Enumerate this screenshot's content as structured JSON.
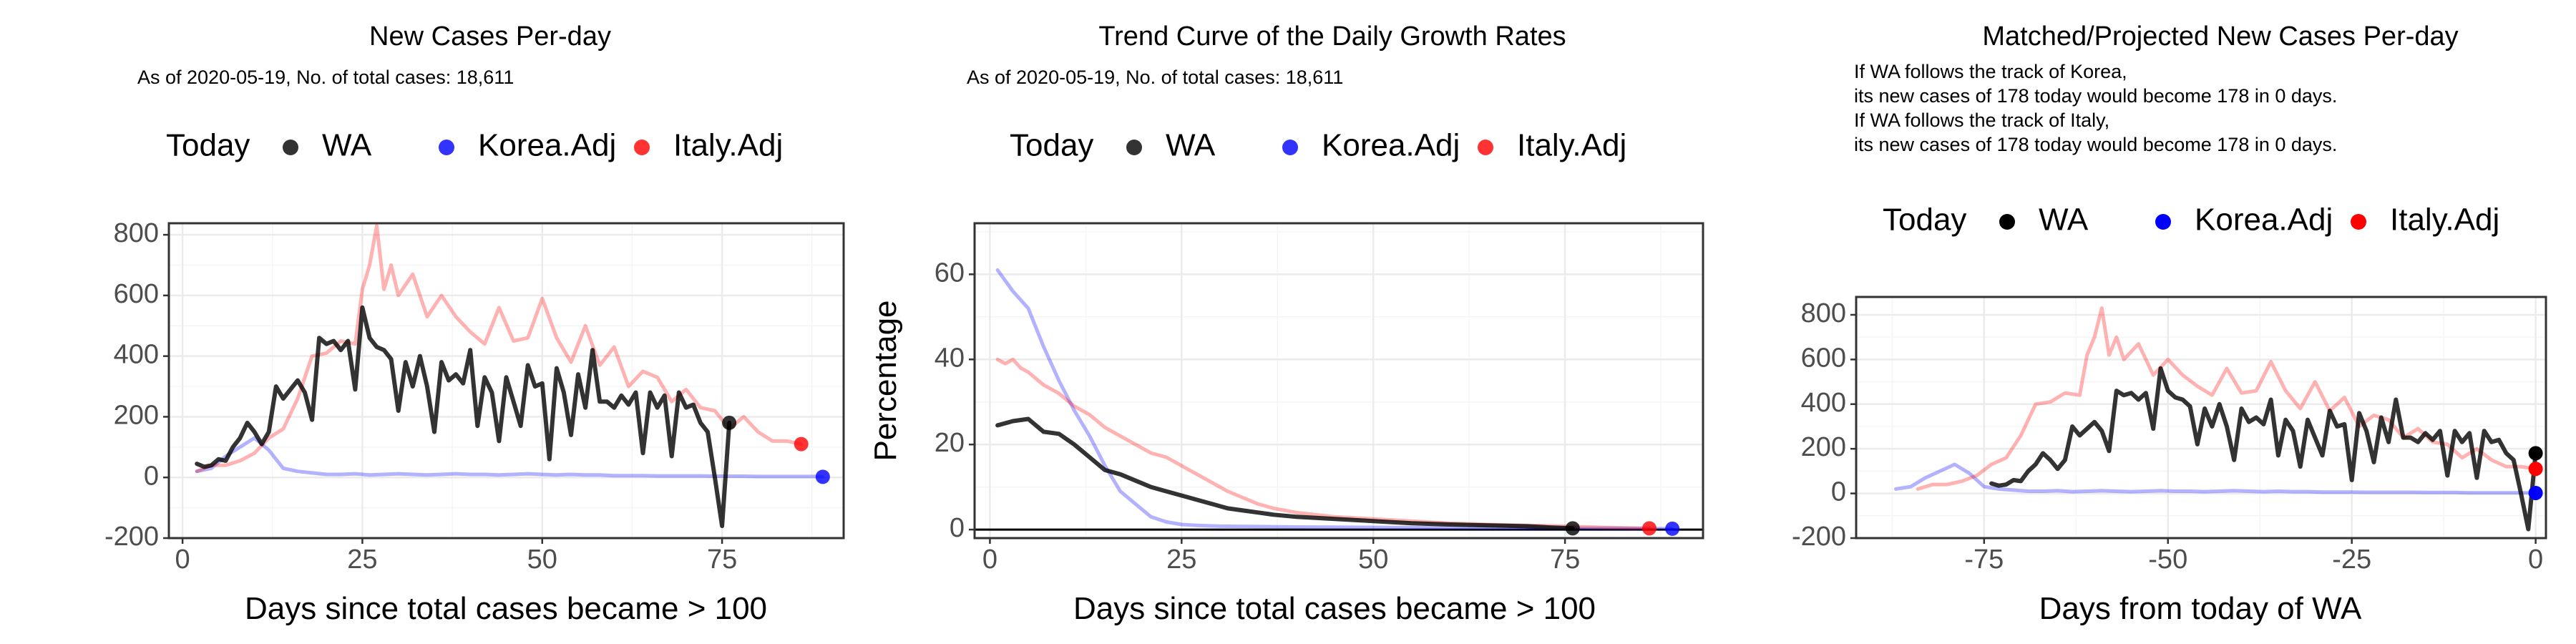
{
  "colors": {
    "wa": "#000000",
    "korea": "#0000FF",
    "italy": "#FF0000",
    "grid_major": "#EBEBEB",
    "grid_minor": "#F5F5F5",
    "axis_text": "#4D4D4D"
  },
  "legend": {
    "title": "Today",
    "items": [
      "WA",
      "Korea.Adj",
      "Italy.Adj"
    ]
  },
  "chart_data": [
    {
      "type": "line",
      "title": "New Cases Per-day",
      "subtitle": "As of 2020-05-19, No. of total cases: 18,611",
      "xlabel": "Days since total cases became > 100",
      "ylabel": "",
      "xlim": [
        -1.9,
        91.9
      ],
      "ylim": [
        -200,
        838
      ],
      "x_ticks": [
        0,
        25,
        50,
        75
      ],
      "x_tick_labels": [
        "0",
        "25",
        "50",
        "75"
      ],
      "y_ticks": [
        -200,
        0,
        200,
        400,
        600,
        800
      ],
      "y_tick_labels": [
        "-200",
        "0",
        "200",
        "400",
        "600",
        "800"
      ],
      "grid": true,
      "legend_position": "top",
      "series": [
        {
          "name": "WA",
          "x": [
            2,
            3,
            4,
            5,
            6,
            7,
            8,
            9,
            10,
            11,
            12,
            13,
            14,
            15,
            16,
            17,
            18,
            19,
            20,
            21,
            22,
            23,
            24,
            25,
            26,
            27,
            28,
            29,
            30,
            31,
            32,
            33,
            34,
            35,
            36,
            37,
            38,
            39,
            40,
            41,
            42,
            43,
            44,
            45,
            46,
            47,
            48,
            49,
            50,
            51,
            52,
            53,
            54,
            55,
            56,
            57,
            58,
            59,
            60,
            61,
            62,
            63,
            64,
            65,
            66,
            67,
            68,
            69,
            70,
            71,
            72,
            73,
            74,
            75,
            76
          ],
          "values": [
            45,
            35,
            40,
            60,
            55,
            100,
            130,
            180,
            150,
            110,
            150,
            300,
            260,
            290,
            320,
            280,
            190,
            460,
            440,
            450,
            420,
            450,
            290,
            560,
            460,
            430,
            420,
            390,
            220,
            380,
            300,
            400,
            300,
            150,
            380,
            320,
            340,
            310,
            420,
            170,
            330,
            280,
            120,
            330,
            250,
            170,
            370,
            300,
            310,
            60,
            360,
            280,
            140,
            340,
            230,
            420,
            250,
            250,
            230,
            270,
            240,
            280,
            80,
            280,
            230,
            270,
            70,
            280,
            230,
            240,
            180,
            150,
            0,
            -160,
            180
          ],
          "color": "#000000",
          "today": {
            "x": 76,
            "y": 180
          }
        },
        {
          "name": "Korea.Adj",
          "x": [
            2,
            4,
            6,
            8,
            10,
            12,
            14,
            16,
            18,
            20,
            22,
            24,
            26,
            28,
            30,
            32,
            34,
            36,
            38,
            40,
            42,
            44,
            46,
            48,
            50,
            52,
            54,
            56,
            58,
            60,
            62,
            64,
            66,
            68,
            70,
            72,
            74,
            76,
            78,
            80,
            82,
            84,
            86,
            88,
            89
          ],
          "values": [
            20,
            30,
            70,
            100,
            130,
            90,
            30,
            20,
            15,
            10,
            10,
            12,
            8,
            10,
            12,
            10,
            8,
            10,
            12,
            10,
            10,
            8,
            10,
            12,
            10,
            8,
            10,
            8,
            8,
            6,
            6,
            6,
            5,
            5,
            5,
            5,
            4,
            4,
            4,
            3,
            3,
            3,
            3,
            3,
            2
          ],
          "color": "#0000FF",
          "today": {
            "x": 89,
            "y": 2
          }
        },
        {
          "name": "Italy.Adj",
          "x": [
            2,
            4,
            6,
            8,
            10,
            12,
            14,
            16,
            18,
            20,
            22,
            24,
            25,
            26,
            27,
            28,
            29,
            30,
            32,
            34,
            36,
            38,
            40,
            42,
            44,
            46,
            48,
            50,
            52,
            54,
            56,
            58,
            60,
            62,
            64,
            66,
            68,
            70,
            72,
            74,
            76,
            78,
            80,
            82,
            84,
            86
          ],
          "values": [
            20,
            40,
            40,
            55,
            80,
            130,
            160,
            260,
            400,
            410,
            450,
            440,
            620,
            700,
            830,
            620,
            700,
            600,
            670,
            530,
            600,
            530,
            480,
            440,
            560,
            450,
            460,
            590,
            460,
            380,
            500,
            370,
            430,
            300,
            350,
            330,
            250,
            290,
            230,
            220,
            160,
            200,
            150,
            120,
            120,
            110
          ],
          "color": "#FF0000",
          "today": {
            "x": 86,
            "y": 110
          }
        }
      ]
    },
    {
      "type": "line",
      "title": "Trend Curve of the Daily Growth Rates",
      "subtitle": "As of 2020-05-19, No. of total cases: 18,611",
      "xlabel": "Days since total cases became > 100",
      "ylabel": "Percentage",
      "xlim": [
        -2.0,
        93.0
      ],
      "ylim": [
        -2,
        72
      ],
      "x_ticks": [
        0,
        25,
        50,
        75
      ],
      "x_tick_labels": [
        "0",
        "25",
        "50",
        "75"
      ],
      "y_ticks": [
        0,
        20,
        40,
        60
      ],
      "y_tick_labels": [
        "0",
        "20",
        "40",
        "60"
      ],
      "reference_line_y": 0,
      "grid": true,
      "legend_position": "top",
      "series": [
        {
          "name": "WA",
          "x": [
            1,
            3,
            5,
            7,
            9,
            11,
            13,
            15,
            17,
            19,
            21,
            23,
            25,
            27,
            29,
            31,
            33,
            35,
            37,
            40,
            45,
            50,
            55,
            60,
            65,
            70,
            73,
            76
          ],
          "values": [
            24.5,
            25.5,
            26,
            23,
            22.5,
            20,
            17,
            14,
            13,
            11.5,
            10,
            9,
            8,
            7,
            6,
            5,
            4.5,
            4,
            3.5,
            3,
            2.5,
            2,
            1.5,
            1.2,
            1,
            0.8,
            0.5,
            0.3
          ],
          "color": "#000000",
          "today": {
            "x": 76,
            "y": 0.3
          }
        },
        {
          "name": "Korea.Adj",
          "x": [
            1,
            3,
            5,
            7,
            9,
            11,
            13,
            15,
            17,
            19,
            21,
            23,
            25,
            27,
            30,
            35,
            40,
            50,
            60,
            70,
            80,
            89
          ],
          "values": [
            61,
            56,
            52,
            43,
            35,
            28,
            22,
            15,
            9,
            6,
            3,
            1.8,
            1.2,
            1,
            0.8,
            0.7,
            0.6,
            0.5,
            0.4,
            0.3,
            0.3,
            0.2
          ],
          "color": "#0000FF",
          "today": {
            "x": 89,
            "y": 0.2
          }
        },
        {
          "name": "Italy.Adj",
          "x": [
            1,
            2,
            3,
            4,
            5,
            7,
            9,
            11,
            13,
            15,
            17,
            19,
            21,
            23,
            25,
            27,
            29,
            31,
            33,
            35,
            37,
            40,
            45,
            50,
            55,
            60,
            65,
            70,
            75,
            80,
            86
          ],
          "values": [
            40,
            39,
            40,
            38,
            37,
            34,
            32,
            29,
            27,
            24,
            22,
            20,
            18,
            17,
            15,
            13,
            11,
            9,
            7.5,
            6,
            5,
            4,
            3,
            2.5,
            2,
            1.5,
            1.2,
            1,
            0.8,
            0.5,
            0.3
          ],
          "color": "#FF0000",
          "today": {
            "x": 86,
            "y": 0.3
          }
        }
      ]
    },
    {
      "type": "line",
      "title": "Matched/Projected New Cases Per-day",
      "annotation_lines": [
        "If WA follows the track of Korea,",
        "its new cases of 178 today would become 178 in 0 days.",
        "If WA follows the track of Italy,",
        "its new cases of 178 today would become 178 in 0 days."
      ],
      "xlabel": "Days from today of WA",
      "ylabel": "",
      "xlim": [
        -92.4,
        1.4
      ],
      "ylim": [
        -200,
        880
      ],
      "x_ticks": [
        -75,
        -50,
        -25,
        0
      ],
      "x_tick_labels": [
        "-75",
        "-50",
        "-25",
        "0"
      ],
      "y_ticks": [
        -200,
        0,
        200,
        400,
        600,
        800
      ],
      "y_tick_labels": [
        "-200",
        "0",
        "200",
        "400",
        "600",
        "800"
      ],
      "grid": true,
      "legend_position": "top",
      "series": [
        {
          "name": "WA",
          "x": [
            -74,
            -73,
            -72,
            -71,
            -70,
            -69,
            -68,
            -67,
            -66,
            -65,
            -64,
            -63,
            -62,
            -61,
            -60,
            -59,
            -58,
            -57,
            -56,
            -55,
            -54,
            -53,
            -52,
            -51,
            -50,
            -49,
            -48,
            -47,
            -46,
            -45,
            -44,
            -43,
            -42,
            -41,
            -40,
            -39,
            -38,
            -37,
            -36,
            -35,
            -34,
            -33,
            -32,
            -31,
            -30,
            -29,
            -28,
            -27,
            -26,
            -25,
            -24,
            -23,
            -22,
            -21,
            -20,
            -19,
            -18,
            -17,
            -16,
            -15,
            -14,
            -13,
            -12,
            -11,
            -10,
            -9,
            -8,
            -7,
            -6,
            -5,
            -4,
            -3,
            -2,
            -1,
            0
          ],
          "values": [
            45,
            35,
            40,
            60,
            55,
            100,
            130,
            180,
            150,
            110,
            150,
            300,
            260,
            290,
            320,
            280,
            190,
            460,
            440,
            450,
            420,
            450,
            290,
            560,
            460,
            430,
            420,
            390,
            220,
            380,
            300,
            400,
            300,
            150,
            380,
            320,
            340,
            310,
            420,
            170,
            330,
            280,
            120,
            330,
            250,
            170,
            370,
            300,
            310,
            60,
            360,
            280,
            140,
            340,
            230,
            420,
            250,
            250,
            230,
            270,
            240,
            280,
            80,
            280,
            230,
            270,
            70,
            280,
            230,
            240,
            180,
            150,
            0,
            -160,
            180
          ],
          "color": "#000000",
          "today": {
            "x": 0,
            "y": 180
          }
        },
        {
          "name": "Korea.Adj",
          "x": [
            -87,
            -85,
            -83,
            -81,
            -79,
            -77,
            -75,
            -73,
            -71,
            -69,
            -67,
            -65,
            -63,
            -61,
            -59,
            -57,
            -55,
            -53,
            -51,
            -49,
            -47,
            -45,
            -43,
            -41,
            -39,
            -37,
            -35,
            -33,
            -31,
            -29,
            -27,
            -25,
            -23,
            -21,
            -19,
            -17,
            -15,
            -13,
            -11,
            -9,
            -7,
            -5,
            -3,
            -1,
            0
          ],
          "values": [
            20,
            30,
            70,
            100,
            130,
            90,
            30,
            20,
            15,
            10,
            10,
            12,
            8,
            10,
            12,
            10,
            8,
            10,
            12,
            10,
            10,
            8,
            10,
            12,
            10,
            8,
            10,
            8,
            8,
            6,
            6,
            6,
            5,
            5,
            5,
            5,
            4,
            4,
            4,
            3,
            3,
            3,
            3,
            3,
            2
          ],
          "color": "#0000FF",
          "today": {
            "x": 0,
            "y": 2
          }
        },
        {
          "name": "Italy.Adj",
          "x": [
            -84,
            -82,
            -80,
            -78,
            -76,
            -74,
            -72,
            -70,
            -68,
            -66,
            -64,
            -62,
            -61,
            -60,
            -59,
            -58,
            -57,
            -56,
            -54,
            -52,
            -50,
            -48,
            -46,
            -44,
            -42,
            -40,
            -38,
            -36,
            -34,
            -32,
            -30,
            -28,
            -26,
            -24,
            -22,
            -20,
            -18,
            -16,
            -14,
            -12,
            -10,
            -8,
            -6,
            -4,
            -2,
            0
          ],
          "values": [
            20,
            40,
            40,
            55,
            80,
            130,
            160,
            260,
            400,
            410,
            450,
            440,
            620,
            700,
            830,
            620,
            700,
            600,
            670,
            530,
            600,
            530,
            480,
            440,
            560,
            450,
            460,
            590,
            460,
            380,
            500,
            370,
            430,
            300,
            350,
            330,
            250,
            290,
            230,
            220,
            160,
            200,
            150,
            120,
            120,
            110
          ],
          "color": "#FF0000",
          "today": {
            "x": 0,
            "y": 110
          }
        }
      ]
    }
  ]
}
